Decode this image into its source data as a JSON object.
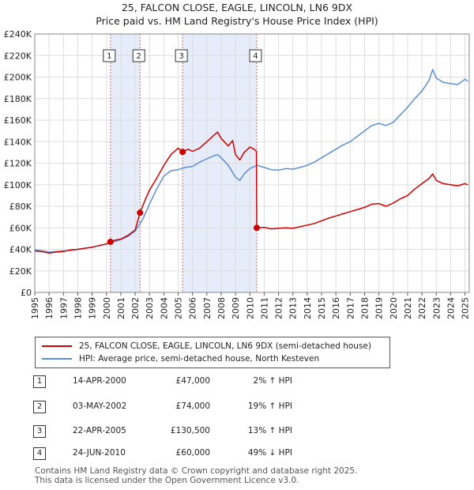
{
  "chart_data": {
    "type": "line",
    "title": "25, FALCON CLOSE, EAGLE, LINCOLN, LN6 9DX",
    "subtitle": "Price paid vs. HM Land Registry's House Price Index (HPI)",
    "x_range": [
      1995,
      2025.3
    ],
    "ylim": [
      0,
      240000
    ],
    "x_ticks": [
      "1995",
      "1996",
      "1997",
      "1998",
      "1999",
      "2000",
      "2001",
      "2002",
      "2003",
      "2004",
      "2005",
      "2006",
      "2007",
      "2008",
      "2009",
      "2010",
      "2011",
      "2012",
      "2013",
      "2014",
      "2015",
      "2016",
      "2017",
      "2018",
      "2019",
      "2020",
      "2021",
      "2022",
      "2023",
      "2024",
      "2025"
    ],
    "y_ticks": [
      {
        "value": 0,
        "label": "£0"
      },
      {
        "value": 20000,
        "label": "£20K"
      },
      {
        "value": 40000,
        "label": "£40K"
      },
      {
        "value": 60000,
        "label": "£60K"
      },
      {
        "value": 80000,
        "label": "£80K"
      },
      {
        "value": 100000,
        "label": "£100K"
      },
      {
        "value": 120000,
        "label": "£120K"
      },
      {
        "value": 140000,
        "label": "£140K"
      },
      {
        "value": 160000,
        "label": "£160K"
      },
      {
        "value": 180000,
        "label": "£180K"
      },
      {
        "value": 200000,
        "label": "£200K"
      },
      {
        "value": 220000,
        "label": "£220K"
      },
      {
        "value": 240000,
        "label": "£240K"
      }
    ],
    "shaded_ranges": [
      [
        2000.28,
        2002.34
      ],
      [
        2005.31,
        2010.48
      ]
    ],
    "series": [
      {
        "name": "25, FALCON CLOSE, EAGLE, LINCOLN, LN6 9DX (semi-detached house)",
        "color": "#cc0000",
        "points": [
          [
            1995,
            38500
          ],
          [
            1995.5,
            38000
          ],
          [
            1996,
            36500
          ],
          [
            1996.5,
            37500
          ],
          [
            1997,
            38000
          ],
          [
            1997.5,
            39500
          ],
          [
            1998,
            40000
          ],
          [
            1998.5,
            41000
          ],
          [
            1999,
            42000
          ],
          [
            1999.5,
            43500
          ],
          [
            2000,
            45000
          ],
          [
            2000.28,
            47000
          ],
          [
            2000.6,
            48500
          ],
          [
            2001,
            49500
          ],
          [
            2001.5,
            53000
          ],
          [
            2002,
            58000
          ],
          [
            2002.34,
            74000
          ],
          [
            2002.7,
            86000
          ],
          [
            2003,
            95000
          ],
          [
            2003.5,
            106000
          ],
          [
            2004,
            118000
          ],
          [
            2004.5,
            128000
          ],
          [
            2005,
            134000
          ],
          [
            2005.31,
            130500
          ],
          [
            2005.7,
            133000
          ],
          [
            2006,
            131000
          ],
          [
            2006.5,
            134000
          ],
          [
            2007,
            140000
          ],
          [
            2007.5,
            146000
          ],
          [
            2007.75,
            149000
          ],
          [
            2008,
            143000
          ],
          [
            2008.5,
            136000
          ],
          [
            2008.8,
            141000
          ],
          [
            2009,
            128000
          ],
          [
            2009.3,
            123000
          ],
          [
            2009.6,
            130000
          ],
          [
            2010,
            135000
          ],
          [
            2010.3,
            133000
          ],
          [
            2010.46,
            131000
          ],
          [
            2010.48,
            60000
          ],
          [
            2011,
            60500
          ],
          [
            2011.5,
            59000
          ],
          [
            2012,
            59500
          ],
          [
            2012.5,
            60000
          ],
          [
            2013,
            59500
          ],
          [
            2013.5,
            61000
          ],
          [
            2014,
            62500
          ],
          [
            2014.5,
            64000
          ],
          [
            2015,
            66500
          ],
          [
            2015.5,
            69000
          ],
          [
            2016,
            71000
          ],
          [
            2016.5,
            73000
          ],
          [
            2017,
            75000
          ],
          [
            2017.5,
            77000
          ],
          [
            2018,
            79000
          ],
          [
            2018.5,
            82000
          ],
          [
            2019,
            82500
          ],
          [
            2019.5,
            80000
          ],
          [
            2020,
            83000
          ],
          [
            2020.5,
            87000
          ],
          [
            2021,
            90000
          ],
          [
            2021.5,
            96000
          ],
          [
            2022,
            101000
          ],
          [
            2022.5,
            106000
          ],
          [
            2022.75,
            110000
          ],
          [
            2023,
            104000
          ],
          [
            2023.5,
            101000
          ],
          [
            2024,
            100000
          ],
          [
            2024.5,
            99000
          ],
          [
            2025,
            101000
          ],
          [
            2025.2,
            100000
          ]
        ]
      },
      {
        "name": "HPI: Average price, semi-detached house, North Kesteven",
        "color": "#5b8fd4",
        "points": [
          [
            1995,
            39500
          ],
          [
            1995.5,
            38500
          ],
          [
            1996,
            37500
          ],
          [
            1996.5,
            38000
          ],
          [
            1997,
            38500
          ],
          [
            1997.5,
            39000
          ],
          [
            1998,
            40000
          ],
          [
            1998.5,
            41000
          ],
          [
            1999,
            42000
          ],
          [
            1999.5,
            43500
          ],
          [
            2000,
            45000
          ],
          [
            2000.5,
            47000
          ],
          [
            2001,
            49000
          ],
          [
            2001.5,
            52000
          ],
          [
            2002,
            57000
          ],
          [
            2002.5,
            67000
          ],
          [
            2003,
            82000
          ],
          [
            2003.5,
            96000
          ],
          [
            2004,
            108000
          ],
          [
            2004.5,
            113000
          ],
          [
            2005,
            114000
          ],
          [
            2005.5,
            116000
          ],
          [
            2006,
            117000
          ],
          [
            2006.5,
            121000
          ],
          [
            2007,
            124000
          ],
          [
            2007.5,
            127000
          ],
          [
            2007.75,
            128000
          ],
          [
            2008,
            125000
          ],
          [
            2008.5,
            118000
          ],
          [
            2009,
            107000
          ],
          [
            2009.3,
            104000
          ],
          [
            2009.6,
            110000
          ],
          [
            2010,
            115000
          ],
          [
            2010.5,
            118000
          ],
          [
            2011,
            116000
          ],
          [
            2011.5,
            114000
          ],
          [
            2012,
            113500
          ],
          [
            2012.5,
            115000
          ],
          [
            2013,
            114500
          ],
          [
            2013.5,
            116000
          ],
          [
            2014,
            118000
          ],
          [
            2014.5,
            121000
          ],
          [
            2015,
            125000
          ],
          [
            2015.5,
            129000
          ],
          [
            2016,
            133000
          ],
          [
            2016.5,
            137000
          ],
          [
            2017,
            140000
          ],
          [
            2017.5,
            145000
          ],
          [
            2018,
            150000
          ],
          [
            2018.5,
            155000
          ],
          [
            2019,
            157000
          ],
          [
            2019.5,
            155000
          ],
          [
            2020,
            158000
          ],
          [
            2020.5,
            165000
          ],
          [
            2021,
            172000
          ],
          [
            2021.5,
            180000
          ],
          [
            2022,
            187000
          ],
          [
            2022.5,
            197000
          ],
          [
            2022.75,
            207000
          ],
          [
            2023,
            199000
          ],
          [
            2023.5,
            195000
          ],
          [
            2024,
            194000
          ],
          [
            2024.5,
            193000
          ],
          [
            2025,
            198000
          ],
          [
            2025.2,
            196000
          ]
        ]
      }
    ],
    "markers": [
      {
        "label": "1",
        "x": 2000.28,
        "value": 47000
      },
      {
        "label": "2",
        "x": 2002.34,
        "value": 74000
      },
      {
        "label": "3",
        "x": 2005.31,
        "value": 130500
      },
      {
        "label": "4",
        "x": 2010.48,
        "value": 60000
      }
    ]
  },
  "legend": {
    "items": [
      {
        "label": "25, FALCON CLOSE, EAGLE, LINCOLN, LN6 9DX (semi-detached house)",
        "color": "#cc0000"
      },
      {
        "label": "HPI: Average price, semi-detached house, North Kesteven",
        "color": "#5b8fd4"
      }
    ]
  },
  "transactions": [
    {
      "num": "1",
      "date": "14-APR-2000",
      "price": "£47,000",
      "hpi": "2% ↑ HPI"
    },
    {
      "num": "2",
      "date": "03-MAY-2002",
      "price": "£74,000",
      "hpi": "19% ↑ HPI"
    },
    {
      "num": "3",
      "date": "22-APR-2005",
      "price": "£130,500",
      "hpi": "13% ↑ HPI"
    },
    {
      "num": "4",
      "date": "24-JUN-2010",
      "price": "£60,000",
      "hpi": "49% ↓ HPI"
    }
  ],
  "footer": {
    "line1": "Contains HM Land Registry data © Crown copyright and database right 2025.",
    "line2": "This data is licensed under the Open Government Licence v3.0."
  }
}
